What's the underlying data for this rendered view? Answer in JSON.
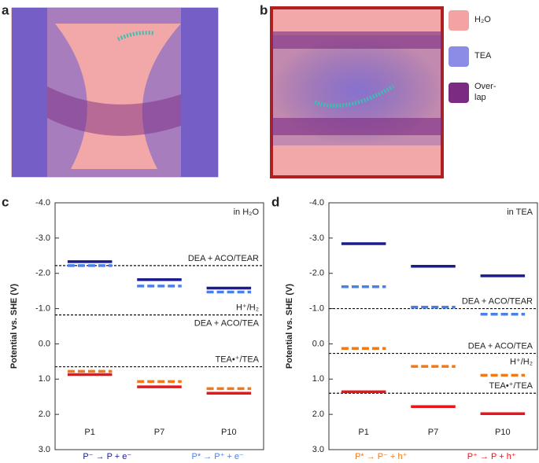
{
  "figure": {
    "panels": [
      "a",
      "b"
    ],
    "legend": [
      {
        "lines": [
          "H₂O"
        ],
        "color": "#f4a3a3"
      },
      {
        "lines": [
          "TEA"
        ],
        "color": "#8c8ce6"
      },
      {
        "lines": [
          "Over-",
          "lap"
        ],
        "color": "#7b2c82"
      }
    ]
  },
  "chart_data": [
    {
      "type": "level",
      "panel": "c",
      "annotation": "in H₂O",
      "y_label": "Potential vs. SHE (V)",
      "categories": [
        "P1",
        "P7",
        "P10"
      ],
      "ylim": [
        3,
        -4
      ],
      "yticks": [
        {
          "value": -4,
          "label": "-4.0"
        },
        {
          "value": -3,
          "label": "-3.0"
        },
        {
          "value": -2,
          "label": "-2.0"
        },
        {
          "value": -1,
          "label": "-1.0"
        },
        {
          "value": 0,
          "label": "0.0"
        },
        {
          "value": 1,
          "label": "1.0"
        },
        {
          "value": 2,
          "label": "2.0"
        },
        {
          "value": 3,
          "label": "3.0"
        }
      ],
      "references": [
        {
          "value": -2.22,
          "above": "DEA + ACO/TEAR"
        },
        {
          "value": -0.82,
          "above": "H⁺/H₂",
          "below": "DEA + ACO/TEA"
        },
        {
          "value": 0.65,
          "above": "TEA•⁺/TEA"
        }
      ],
      "series": [
        {
          "name": "P⁻ → P + e⁻",
          "color": "#1c1c8f",
          "dashed": false,
          "values": [
            -2.33,
            -1.82,
            -1.58
          ]
        },
        {
          "name": "P* → P⁺ + e⁻",
          "color": "#4a80e8",
          "dashed": true,
          "values": [
            -2.22,
            -1.64,
            -1.47
          ]
        },
        {
          "color": "#f07a1a",
          "dashed": true,
          "values": [
            0.78,
            1.07,
            1.27
          ]
        },
        {
          "color": "#e8151b",
          "dashed": false,
          "values": [
            0.87,
            1.22,
            1.4
          ]
        }
      ]
    },
    {
      "type": "level",
      "panel": "d",
      "annotation": "in TEA",
      "y_label": "Potential vs. SHE (V)",
      "categories": [
        "P1",
        "P7",
        "P10"
      ],
      "ylim": [
        3,
        -4
      ],
      "yticks": [
        {
          "value": -4,
          "label": "-4.0"
        },
        {
          "value": -3,
          "label": "-3.0"
        },
        {
          "value": -2,
          "label": "-2.0"
        },
        {
          "value": -1,
          "label": "-1.0"
        },
        {
          "value": 0,
          "label": "0.0"
        },
        {
          "value": 1,
          "label": "1.0"
        },
        {
          "value": 2,
          "label": "2.0"
        },
        {
          "value": 3,
          "label": "3.0"
        }
      ],
      "references": [
        {
          "value": -1.0,
          "above": "DEA + ACO/TEAR"
        },
        {
          "value": 0.27,
          "above": "DEA + ACO/TEA",
          "below": "H⁺/H₂"
        },
        {
          "value": 1.4,
          "above": "TEA•⁺/TEA"
        }
      ],
      "series": [
        {
          "color": "#1c1c8f",
          "dashed": false,
          "values": [
            -2.84,
            -2.2,
            -1.93
          ]
        },
        {
          "color": "#4a80e8",
          "dashed": true,
          "values": [
            -1.62,
            -1.04,
            -0.84
          ]
        },
        {
          "name": "P* → P⁻ + h⁺",
          "color": "#f07a1a",
          "dashed": true,
          "values": [
            0.13,
            0.64,
            0.89
          ]
        },
        {
          "name": "P⁺ → P + h⁺",
          "color": "#e8151b",
          "dashed": false,
          "values": [
            1.36,
            1.78,
            1.98
          ]
        }
      ]
    }
  ]
}
